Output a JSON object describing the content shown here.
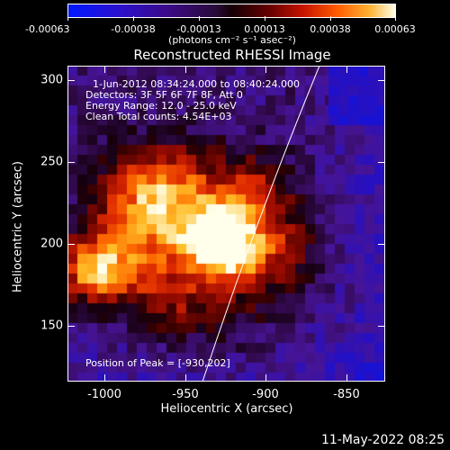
{
  "colorbar": {
    "ticks": [
      "-0.00063",
      "-0.00038",
      "-0.00013",
      "0.00013",
      "0.00038",
      "0.00063"
    ],
    "unit_label": "(photons cm⁻² s⁻¹ asec⁻²)"
  },
  "title": "Reconstructed RHESSI Image",
  "info": {
    "time_range": "1-Jun-2012 08:34:24.000 to 08:40:24.000",
    "detectors": "Detectors: 3F 5F 6F 7F 8F, Att 0",
    "energy_range": "Energy Range: 12.0 - 25.0 keV",
    "clean_counts": "Clean    Total counts: 4.54E+03",
    "peak_position": "Position of Peak = [-930,202]"
  },
  "axes": {
    "xlabel": "Heliocentric X (arcsec)",
    "ylabel": "Heliocentric Y (arcsec)",
    "xticks": [
      "-1000",
      "-950",
      "-900",
      "-850"
    ],
    "yticks": [
      "300",
      "250",
      "200",
      "150"
    ]
  },
  "footer_timestamp": "11-May-2022 08:25",
  "image": {
    "peak_x": -930,
    "peak_y": 202,
    "x_range": [
      -1020,
      -830
    ],
    "y_range": [
      115,
      308
    ]
  }
}
